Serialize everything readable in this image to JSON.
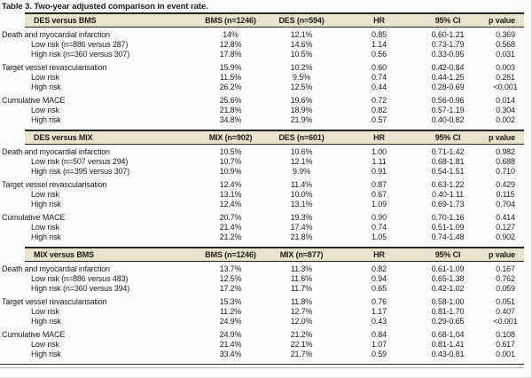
{
  "title": "Table 3. Two-year adjusted comparison in event rate.",
  "colors": {
    "band_background": "#e8e4cd",
    "rule": "#26251f",
    "text": "#1d1c18"
  },
  "sections": [
    {
      "header": {
        "comparison": "DES versus BMS",
        "cols": [
          "BMS (n=1246)",
          "DES (n=594)",
          "HR",
          "95% CI",
          "p value"
        ]
      },
      "groups": [
        {
          "rows": [
            {
              "label": "Death and myocardial infarction",
              "indent": false,
              "values": [
                "14%",
                "12.1%",
                "0.85",
                "0.60-1.21",
                "0.369"
              ]
            },
            {
              "label": "Low risk (n=886 versus 287)",
              "indent": true,
              "values": [
                "12.8%",
                "14.6%",
                "1.14",
                "0.73-1.79",
                "0.568"
              ]
            },
            {
              "label": "High risk (n=360 versus 307)",
              "indent": true,
              "values": [
                "17.8%",
                "10.5%",
                "0.56",
                "0.33-0.95",
                "0.031"
              ]
            }
          ]
        },
        {
          "rows": [
            {
              "label": "Target vessel revascularisation",
              "indent": false,
              "values": [
                "15.9%",
                "10.2%",
                "0.60",
                "0.42-0.84",
                "0.003"
              ]
            },
            {
              "label": "Low risk",
              "indent": true,
              "values": [
                "11.5%",
                "9.5%",
                "0.74",
                "0.44-1.25",
                "0.261"
              ]
            },
            {
              "label": "High risk",
              "indent": true,
              "values": [
                "26.2%",
                "12.5%",
                "0.44",
                "0.28-0.69",
                "<0.001"
              ]
            }
          ]
        },
        {
          "rows": [
            {
              "label": "Cumulative MACE",
              "indent": false,
              "values": [
                "25.6%",
                "19.6%",
                "0.72",
                "0.56-0.96",
                "0.014"
              ]
            },
            {
              "label": "Low risk",
              "indent": true,
              "values": [
                "21.8%",
                "18.9%",
                "0.82",
                "0.57-1.19",
                "0.304"
              ]
            },
            {
              "label": "High risk",
              "indent": true,
              "values": [
                "34.8%",
                "21.9%",
                "0.57",
                "0.40-0.82",
                "0.002"
              ]
            }
          ]
        }
      ]
    },
    {
      "header": {
        "comparison": "DES versus MIX",
        "cols": [
          "MIX (n=902)",
          "DES (n=601)",
          "HR",
          "95% CI",
          "p value"
        ]
      },
      "groups": [
        {
          "rows": [
            {
              "label": "Death and myocardial infarction",
              "indent": false,
              "values": [
                "10.5%",
                "10.6%",
                "1.00",
                "0.71-1.42",
                "0.982"
              ]
            },
            {
              "label": "Low risk (n=507 versus 294)",
              "indent": true,
              "values": [
                "10.7%",
                "12.1%",
                "1.11",
                "0.68-1.81",
                "0.688"
              ]
            },
            {
              "label": "High risk (n=395 versus 307)",
              "indent": true,
              "values": [
                "10.9%",
                "9.9%",
                "0.91",
                "0.54-1.51",
                "0.710"
              ]
            }
          ]
        },
        {
          "rows": [
            {
              "label": "Target vessel revascularisation",
              "indent": false,
              "values": [
                "12.4%",
                "11.4%",
                "0.87",
                "0.63-1.22",
                "0.429"
              ]
            },
            {
              "label": "Low risk",
              "indent": true,
              "values": [
                "13.1%",
                "10.0%",
                "0.67",
                "0.40-1.11",
                "0.115"
              ]
            },
            {
              "label": "High risk",
              "indent": true,
              "values": [
                "12.4%",
                "13.1%",
                "1.09",
                "0.69-1.73",
                "0.704"
              ]
            }
          ]
        },
        {
          "rows": [
            {
              "label": "Cumulative MACE",
              "indent": false,
              "values": [
                "20.7%",
                "19.3%",
                "0.90",
                "0.70-1.16",
                "0.414"
              ]
            },
            {
              "label": "Low risk",
              "indent": true,
              "values": [
                "21.4%",
                "17.4%",
                "0.74",
                "0.51-1.09",
                "0.127"
              ]
            },
            {
              "label": "High risk",
              "indent": true,
              "values": [
                "21.2%",
                "21.8%",
                "1.05",
                "0.74-1.48",
                "0.902"
              ]
            }
          ]
        }
      ]
    },
    {
      "header": {
        "comparison": "MIX versus BMS",
        "cols": [
          "BMS (n=1246)",
          "MIX (n=877)",
          "HR",
          "95% CI",
          "p value"
        ]
      },
      "groups": [
        {
          "rows": [
            {
              "label": "Death and myocardial infarction",
              "indent": false,
              "values": [
                "13.7%",
                "11.3%",
                "0.82",
                "0.61-1.09",
                "0.167"
              ]
            },
            {
              "label": "Low risk (n=886 versus 483)",
              "indent": true,
              "values": [
                "12.5%",
                "11.6%",
                "0.94",
                "0.65-1.38",
                "0.762"
              ]
            },
            {
              "label": "High risk (n=360 versus 394)",
              "indent": true,
              "values": [
                "17.2%",
                "11.7%",
                "0.65",
                "0.42-1.02",
                "0.059"
              ]
            }
          ]
        },
        {
          "rows": [
            {
              "label": "Target vessel revascularisation",
              "indent": false,
              "values": [
                "15.3%",
                "11.8%",
                "0.76",
                "0.58-1.00",
                "0.051"
              ]
            },
            {
              "label": "Low risk",
              "indent": true,
              "values": [
                "11.2%",
                "12.7%",
                "1.17",
                "0.81-1.70",
                "0.407"
              ]
            },
            {
              "label": "High risk",
              "indent": true,
              "values": [
                "24.9%",
                "12.0%",
                "0.43",
                "0.29-0.65",
                "<0.001"
              ]
            }
          ]
        },
        {
          "rows": [
            {
              "label": "Cumulative MACE",
              "indent": false,
              "values": [
                "24.9%",
                "21.2%",
                "0.84",
                "0.68-1.04",
                "0.108"
              ]
            },
            {
              "label": "Low risk",
              "indent": true,
              "values": [
                "21.4%",
                "22.1%",
                "1.07",
                "0.81-1.41",
                "0.617"
              ]
            },
            {
              "label": "High risk",
              "indent": true,
              "values": [
                "33.4%",
                "21.7%",
                "0.59",
                "0.43-0.81",
                "0.001"
              ]
            }
          ]
        }
      ]
    }
  ]
}
